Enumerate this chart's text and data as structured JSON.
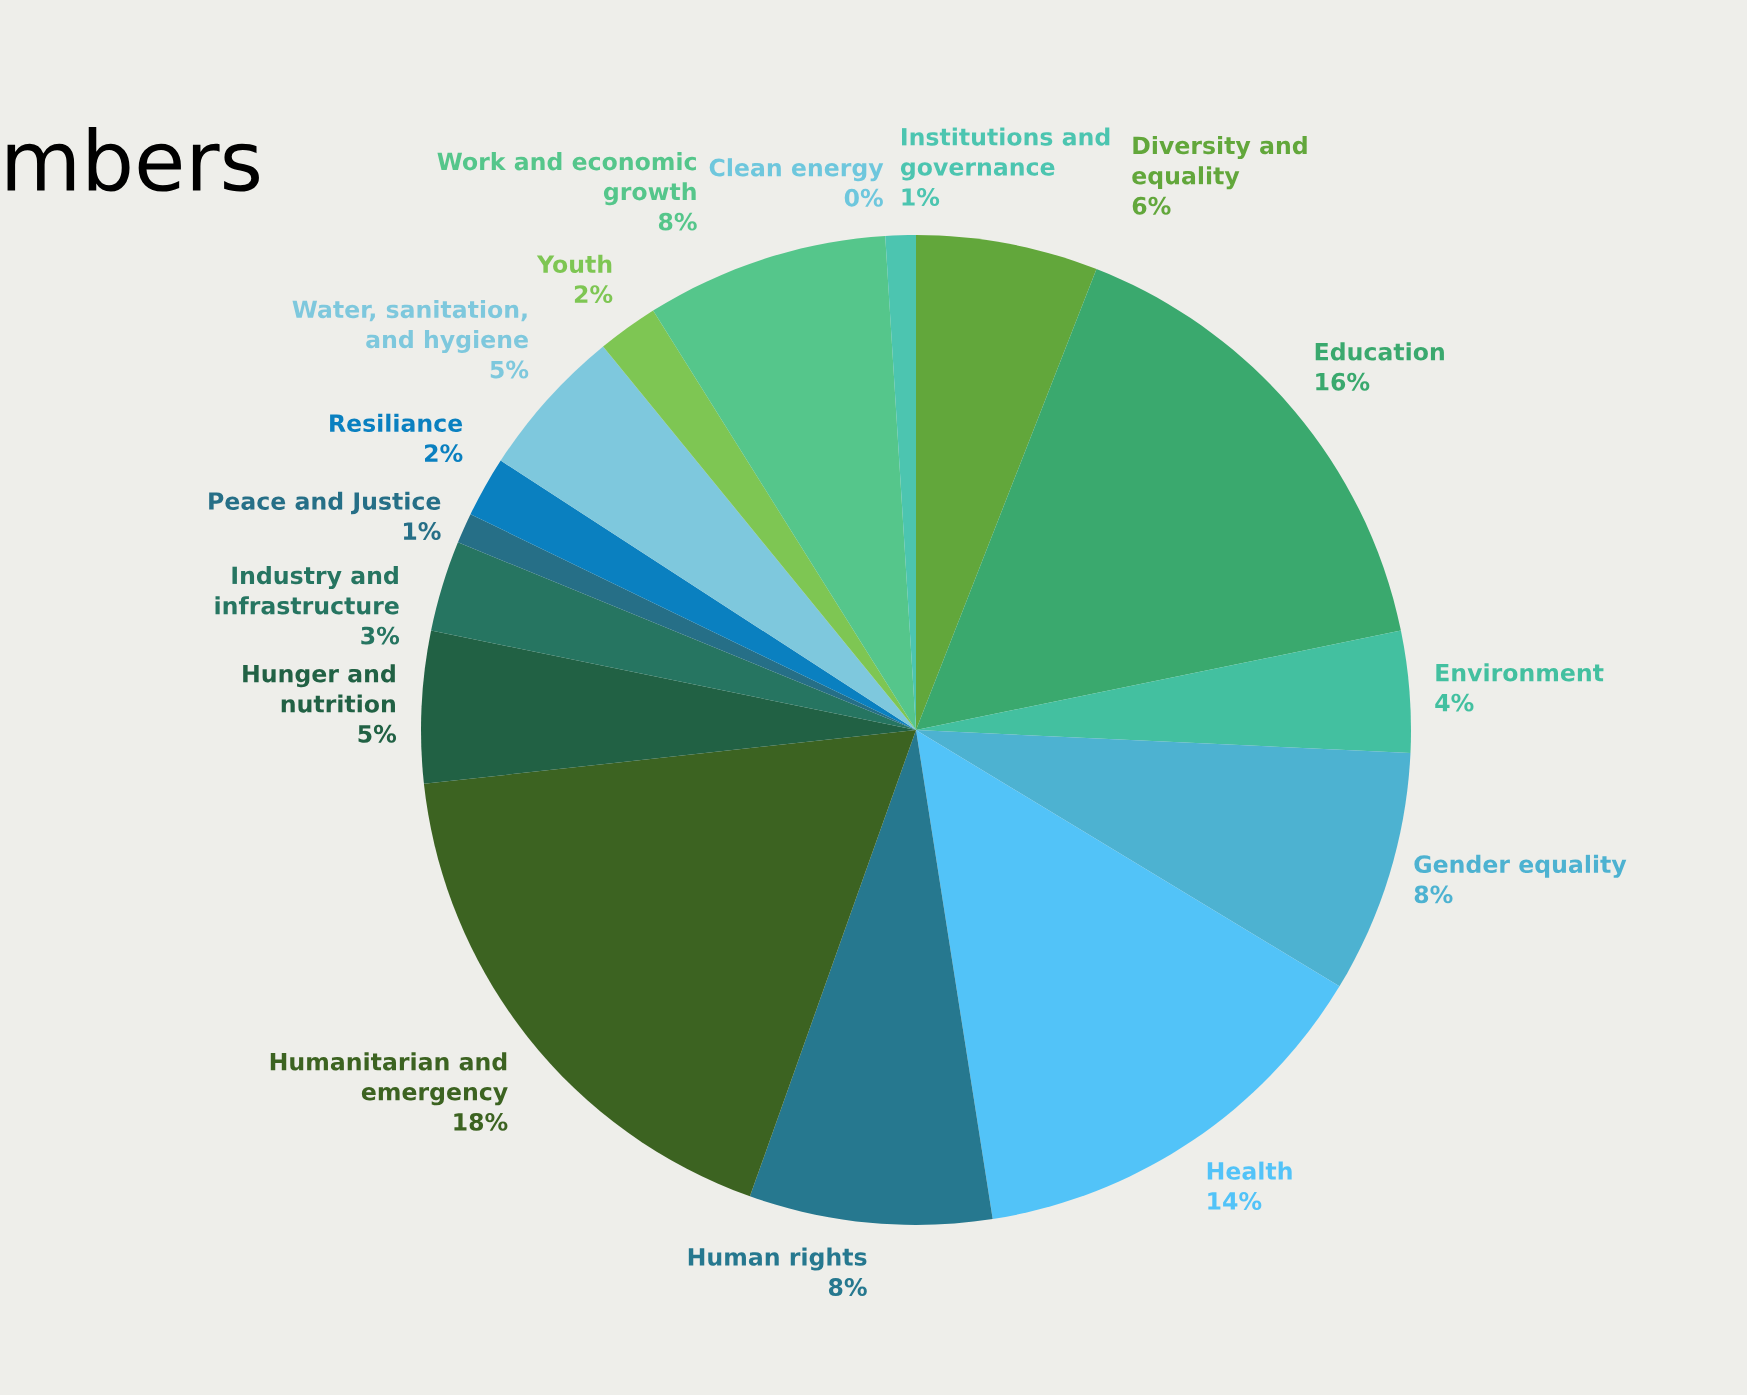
{
  "chart_data": {
    "type": "pie",
    "title": "mbers",
    "categories": [
      "Diversity and equality",
      "Education",
      "Environment",
      "Gender equality",
      "Health",
      "Human rights",
      "Humanitarian and emergency",
      "Hunger and nutrition",
      "Industry and infrastructure",
      "Peace and Justice",
      "Resiliance",
      "Water, sanitation, and hygiene",
      "Youth",
      "Work and economic growth",
      "Clean energy",
      "Institutions and governance"
    ],
    "values": [
      6,
      16,
      4,
      8,
      14,
      8,
      18,
      5,
      3,
      1,
      2,
      5,
      2,
      8,
      0,
      1
    ],
    "value_labels": [
      "6%",
      "16%",
      "4%",
      "8%",
      "14%",
      "8%",
      "18%",
      "5%",
      "3%",
      "1%",
      "2%",
      "5%",
      "2%",
      "8%",
      "0%",
      "1%"
    ],
    "colors": [
      "#62a73b",
      "#3aa96e",
      "#43c0a0",
      "#4db2d1",
      "#52c3f8",
      "#26788f",
      "#3c6321",
      "#216144",
      "#267561",
      "#266f87",
      "#0a80c0",
      "#7ec8dd",
      "#7ec653",
      "#55c68b",
      "#6ec7dd",
      "#4cc5b0"
    ],
    "legend": false
  }
}
